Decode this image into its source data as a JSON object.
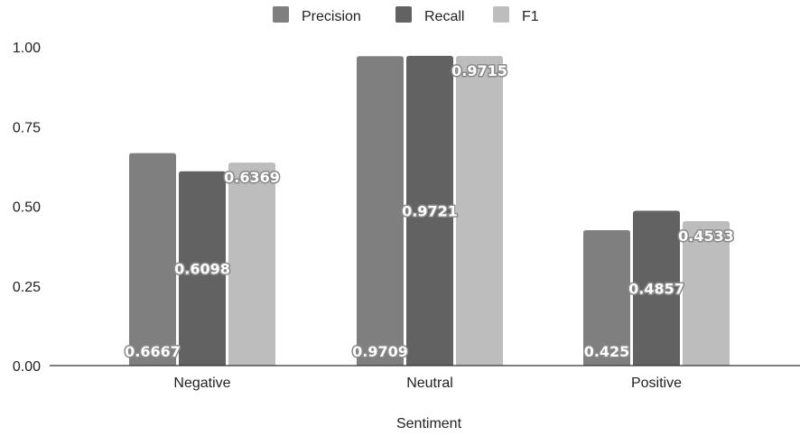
{
  "chart_data": {
    "type": "bar",
    "title": "",
    "xlabel": "Sentiment",
    "ylabel": "",
    "categories": [
      "Negative",
      "Neutral",
      "Positive"
    ],
    "series": [
      {
        "name": "Precision",
        "values": [
          0.6667,
          0.9709,
          0.425
        ],
        "labels": [
          "0.6667",
          "0.9709",
          "0.425"
        ],
        "color": "#7f7f7f"
      },
      {
        "name": "Recall",
        "values": [
          0.6098,
          0.9721,
          0.4857
        ],
        "labels": [
          "0.6098",
          "0.9721",
          "0.4857"
        ],
        "color": "#626262"
      },
      {
        "name": "F1",
        "values": [
          0.6369,
          0.9715,
          0.4533
        ],
        "labels": [
          "0.6369",
          "0.9715",
          "0.4533"
        ],
        "color": "#bdbdbd"
      }
    ],
    "ylim": [
      0,
      1
    ],
    "yticks": [
      0,
      0.25,
      0.5,
      0.75,
      1
    ],
    "ytick_labels": [
      "0.00",
      "0.25",
      "0.50",
      "0.75",
      "1.00"
    ],
    "grid": false,
    "legend_position": "top-center"
  }
}
